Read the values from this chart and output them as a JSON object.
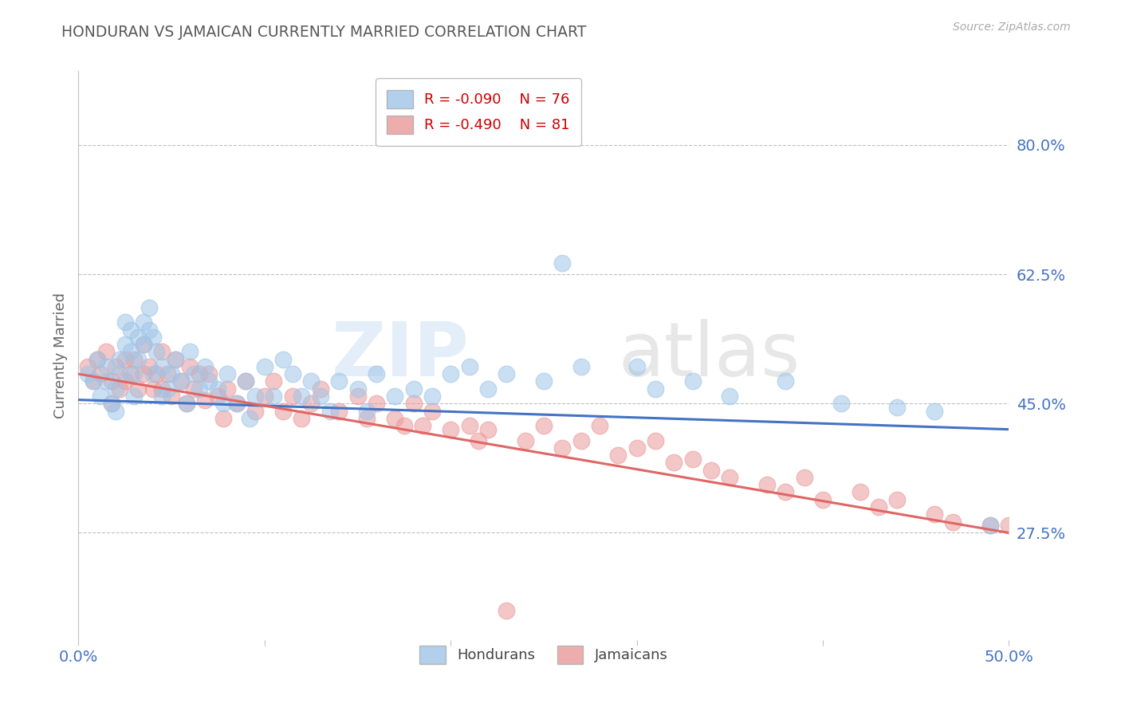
{
  "title": "HONDURAN VS JAMAICAN CURRENTLY MARRIED CORRELATION CHART",
  "source": "Source: ZipAtlas.com",
  "ylabel": "Currently Married",
  "ytick_labels": [
    "80.0%",
    "62.5%",
    "45.0%",
    "27.5%"
  ],
  "ytick_values": [
    0.8,
    0.625,
    0.45,
    0.275
  ],
  "xmin": 0.0,
  "xmax": 0.5,
  "ymin": 0.13,
  "ymax": 0.9,
  "legend_r1": "R = -0.090",
  "legend_n1": "N = 76",
  "legend_r2": "R = -0.490",
  "legend_n2": "N = 81",
  "legend_label1": "Hondurans",
  "legend_label2": "Jamaicans",
  "blue_color": "#9fc5e8",
  "pink_color": "#ea9999",
  "line_blue": "#4472c4",
  "line_pink": "#e06666",
  "axis_label_color": "#4472c4",
  "title_color": "#595959",
  "watermark": "ZIPatlas",
  "blue_trend_x0": 0.0,
  "blue_trend_y0": 0.455,
  "blue_trend_x1": 0.5,
  "blue_trend_y1": 0.415,
  "pink_trend_x0": 0.0,
  "pink_trend_y0": 0.49,
  "pink_trend_x1": 0.5,
  "pink_trend_y1": 0.275,
  "honduran_x": [
    0.005,
    0.008,
    0.01,
    0.012,
    0.015,
    0.015,
    0.018,
    0.02,
    0.02,
    0.022,
    0.022,
    0.025,
    0.025,
    0.028,
    0.028,
    0.03,
    0.03,
    0.032,
    0.032,
    0.035,
    0.035,
    0.038,
    0.038,
    0.04,
    0.04,
    0.042,
    0.045,
    0.045,
    0.048,
    0.05,
    0.052,
    0.055,
    0.058,
    0.06,
    0.062,
    0.065,
    0.068,
    0.07,
    0.075,
    0.078,
    0.08,
    0.085,
    0.09,
    0.092,
    0.095,
    0.1,
    0.105,
    0.11,
    0.115,
    0.12,
    0.125,
    0.13,
    0.135,
    0.14,
    0.15,
    0.155,
    0.16,
    0.17,
    0.18,
    0.19,
    0.2,
    0.21,
    0.22,
    0.23,
    0.25,
    0.26,
    0.27,
    0.3,
    0.31,
    0.33,
    0.35,
    0.38,
    0.41,
    0.44,
    0.46,
    0.49
  ],
  "honduran_y": [
    0.49,
    0.48,
    0.51,
    0.46,
    0.5,
    0.48,
    0.45,
    0.47,
    0.44,
    0.51,
    0.49,
    0.56,
    0.53,
    0.55,
    0.52,
    0.49,
    0.46,
    0.54,
    0.51,
    0.56,
    0.53,
    0.58,
    0.55,
    0.54,
    0.49,
    0.52,
    0.46,
    0.5,
    0.47,
    0.49,
    0.51,
    0.48,
    0.45,
    0.52,
    0.49,
    0.47,
    0.5,
    0.48,
    0.47,
    0.45,
    0.49,
    0.45,
    0.48,
    0.43,
    0.46,
    0.5,
    0.46,
    0.51,
    0.49,
    0.46,
    0.48,
    0.46,
    0.44,
    0.48,
    0.47,
    0.44,
    0.49,
    0.46,
    0.47,
    0.46,
    0.49,
    0.5,
    0.47,
    0.49,
    0.48,
    0.64,
    0.5,
    0.5,
    0.47,
    0.48,
    0.46,
    0.48,
    0.45,
    0.445,
    0.44,
    0.285
  ],
  "jamaican_x": [
    0.005,
    0.008,
    0.01,
    0.012,
    0.015,
    0.018,
    0.018,
    0.02,
    0.022,
    0.025,
    0.025,
    0.028,
    0.03,
    0.032,
    0.035,
    0.035,
    0.038,
    0.04,
    0.042,
    0.045,
    0.045,
    0.048,
    0.05,
    0.052,
    0.055,
    0.058,
    0.06,
    0.062,
    0.065,
    0.068,
    0.07,
    0.075,
    0.078,
    0.08,
    0.085,
    0.09,
    0.095,
    0.1,
    0.105,
    0.11,
    0.115,
    0.12,
    0.125,
    0.13,
    0.14,
    0.15,
    0.155,
    0.16,
    0.17,
    0.175,
    0.18,
    0.185,
    0.19,
    0.2,
    0.21,
    0.215,
    0.22,
    0.23,
    0.24,
    0.25,
    0.26,
    0.27,
    0.28,
    0.29,
    0.3,
    0.31,
    0.32,
    0.33,
    0.34,
    0.35,
    0.37,
    0.38,
    0.39,
    0.4,
    0.42,
    0.43,
    0.44,
    0.46,
    0.47,
    0.49,
    0.5
  ],
  "jamaican_y": [
    0.5,
    0.48,
    0.51,
    0.49,
    0.52,
    0.48,
    0.45,
    0.5,
    0.47,
    0.51,
    0.48,
    0.49,
    0.51,
    0.47,
    0.53,
    0.49,
    0.5,
    0.47,
    0.49,
    0.52,
    0.47,
    0.49,
    0.46,
    0.51,
    0.48,
    0.45,
    0.5,
    0.47,
    0.49,
    0.455,
    0.49,
    0.46,
    0.43,
    0.47,
    0.45,
    0.48,
    0.44,
    0.46,
    0.48,
    0.44,
    0.46,
    0.43,
    0.45,
    0.47,
    0.44,
    0.46,
    0.43,
    0.45,
    0.43,
    0.42,
    0.45,
    0.42,
    0.44,
    0.415,
    0.42,
    0.4,
    0.415,
    0.17,
    0.4,
    0.42,
    0.39,
    0.4,
    0.42,
    0.38,
    0.39,
    0.4,
    0.37,
    0.375,
    0.36,
    0.35,
    0.34,
    0.33,
    0.35,
    0.32,
    0.33,
    0.31,
    0.32,
    0.3,
    0.29,
    0.285,
    0.285
  ]
}
